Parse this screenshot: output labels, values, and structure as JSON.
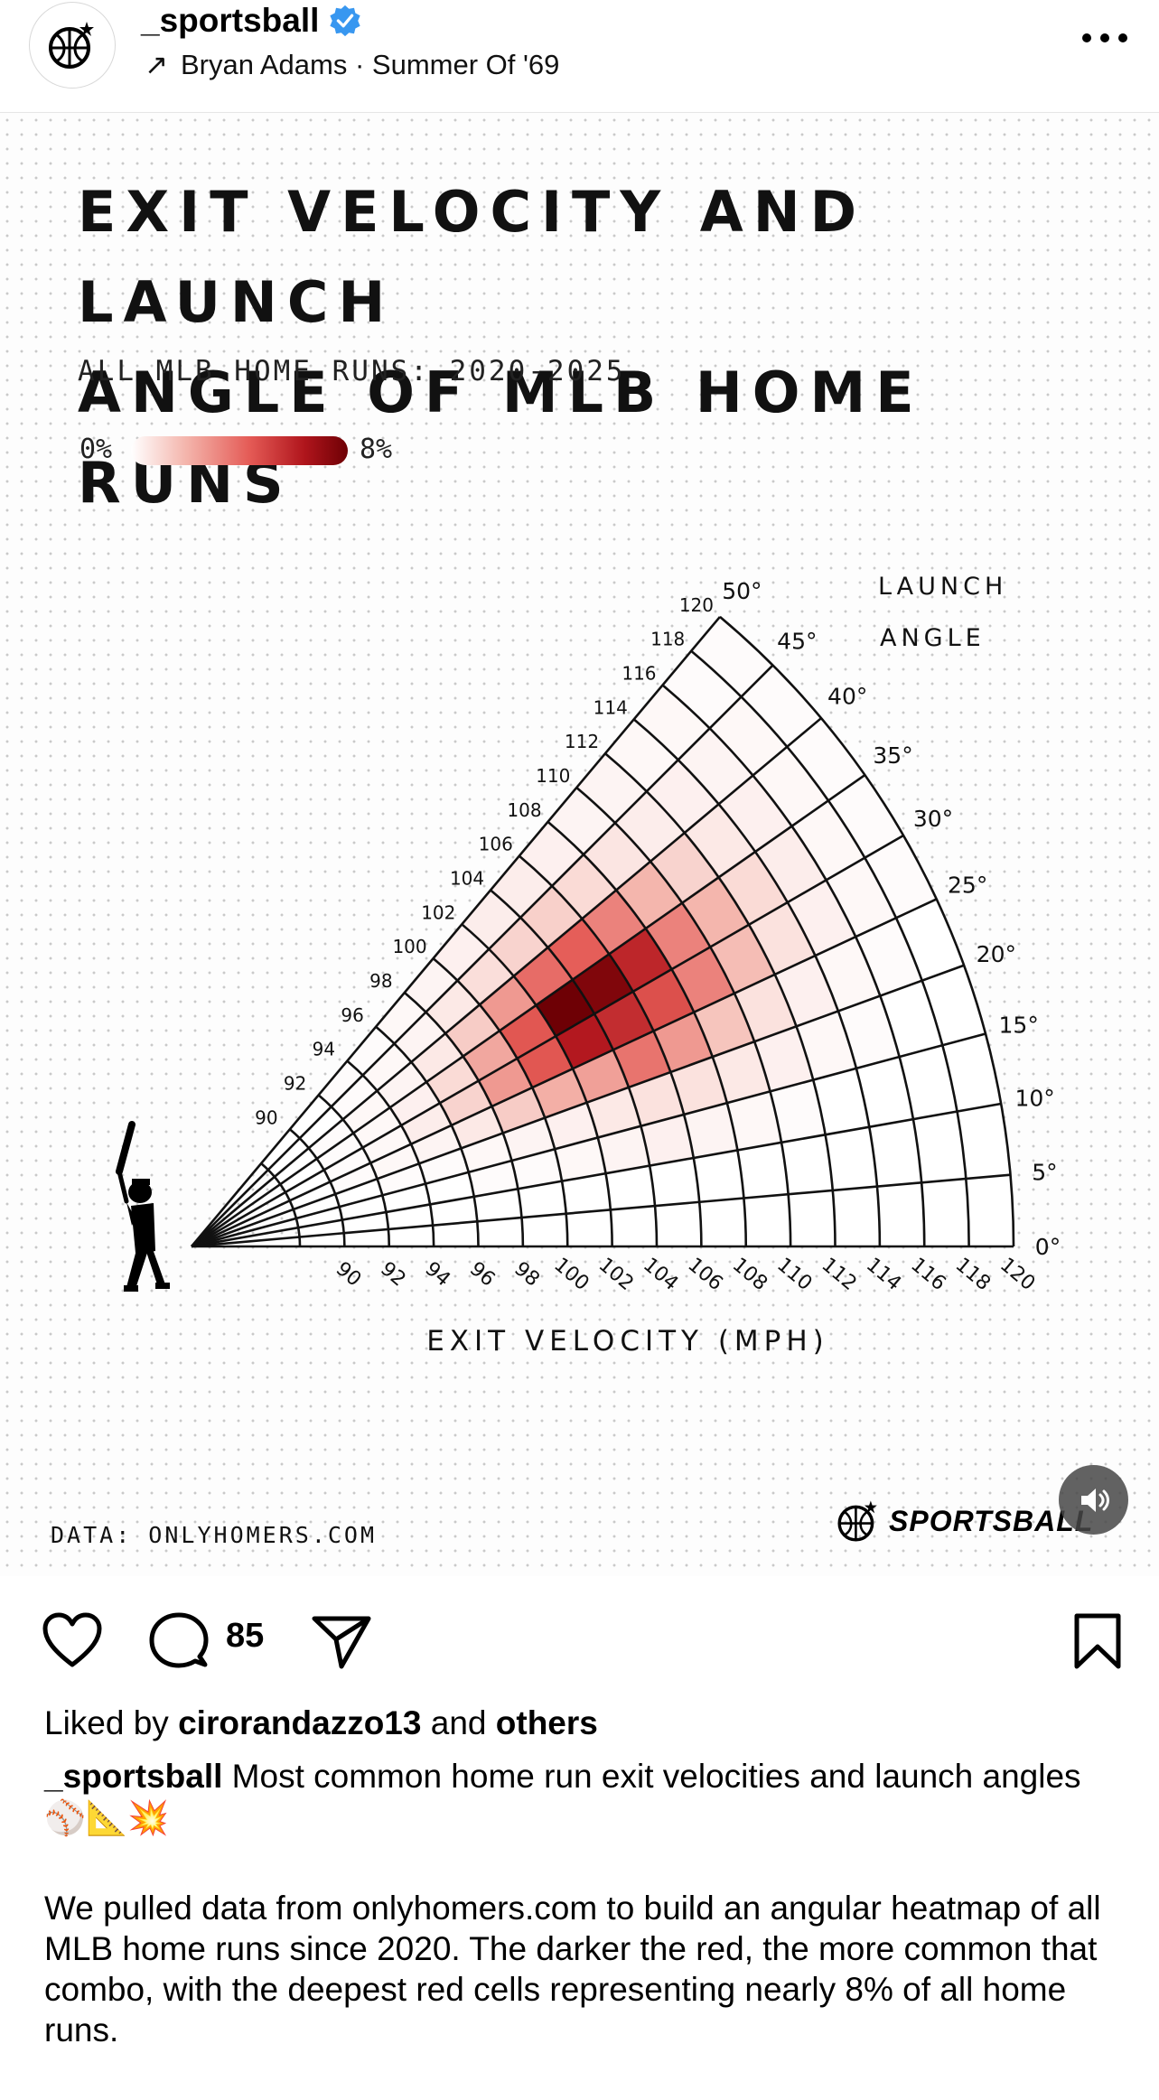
{
  "header": {
    "username": "_sportsball",
    "music_arrow": "↗",
    "music": "Bryan Adams · Summer Of '69",
    "more_icon": "more-horizontal-icon"
  },
  "post": {
    "title_line1": "EXIT VELOCITY AND LAUNCH",
    "title_line2": "ANGLE OF MLB HOME RUNS",
    "subtitle": "ALL MLB HOME RUNS: 2020-2025",
    "legend_min": "0%",
    "legend_max": "8%",
    "data_source": "DATA: ONLYHOMERS.COM",
    "brand": "SPORTSBALL"
  },
  "chart_data": {
    "type": "heatmap",
    "title": "EXIT VELOCITY AND LAUNCH ANGLE OF MLB HOME RUNS",
    "subtitle": "ALL MLB HOME RUNS: 2020-2025",
    "xlabel": "EXIT VELOCITY (MPH)",
    "angle_label": [
      "LAUNCH",
      "ANGLE"
    ],
    "velocity_ticks": [
      "90",
      "92",
      "94",
      "96",
      "98",
      "100",
      "102",
      "104",
      "106",
      "108",
      "110",
      "112",
      "114",
      "116",
      "118",
      "120"
    ],
    "angle_ticks": [
      "0°",
      "5°",
      "10°",
      "15°",
      "20°",
      "25°",
      "30°",
      "35°",
      "40°",
      "45°",
      "50°"
    ],
    "velocity_bins": [
      88,
      90,
      92,
      94,
      96,
      98,
      100,
      102,
      104,
      106,
      108,
      110,
      112,
      114,
      116,
      118,
      120
    ],
    "angle_bins": [
      0,
      5,
      10,
      15,
      20,
      25,
      30,
      35,
      40,
      45,
      50
    ],
    "color_scale": {
      "min": 0,
      "max": 8,
      "unit": "%",
      "colors": [
        "#ffffff",
        "#f4b6ad",
        "#e45a55",
        "#b0151c",
        "#6e0005"
      ]
    },
    "values_percent": [
      [
        0,
        0,
        0,
        0,
        0,
        0,
        0,
        0,
        0,
        0,
        0,
        0,
        0,
        0,
        0,
        0
      ],
      [
        0,
        0,
        0,
        0,
        0,
        0,
        0,
        0,
        0,
        0,
        0,
        0,
        0,
        0,
        0,
        0
      ],
      [
        0,
        0,
        0,
        0,
        0.1,
        0.1,
        0.2,
        0.3,
        0.4,
        0.3,
        0.2,
        0.1,
        0,
        0,
        0,
        0
      ],
      [
        0,
        0,
        0.1,
        0.1,
        0.2,
        0.3,
        0.4,
        0.6,
        0.8,
        0.8,
        0.6,
        0.4,
        0.2,
        0.1,
        0,
        0
      ],
      [
        0,
        0.1,
        0.2,
        0.3,
        0.6,
        1.4,
        2.2,
        2.6,
        3.8,
        2.8,
        1.6,
        0.8,
        0.4,
        0.2,
        0.1,
        0
      ],
      [
        0,
        0.1,
        0.2,
        0.5,
        1.2,
        2.8,
        4.6,
        6.4,
        5.8,
        4.8,
        3.4,
        1.8,
        0.8,
        0.4,
        0.2,
        0.1
      ],
      [
        0,
        0.1,
        0.2,
        0.4,
        1.0,
        2.4,
        4.6,
        8.0,
        7.6,
        6.0,
        3.4,
        2.0,
        1.0,
        0.5,
        0.2,
        0.1
      ],
      [
        0,
        0.1,
        0.2,
        0.3,
        0.6,
        1.4,
        2.8,
        4.0,
        4.4,
        3.4,
        2.0,
        1.2,
        0.6,
        0.4,
        0.2,
        0.1
      ],
      [
        0,
        0,
        0.1,
        0.2,
        0.3,
        0.6,
        0.9,
        1.2,
        1.3,
        1.0,
        0.7,
        0.5,
        0.4,
        0.3,
        0.2,
        0.1
      ],
      [
        0,
        0,
        0.1,
        0.1,
        0.2,
        0.3,
        0.4,
        0.5,
        0.5,
        0.4,
        0.3,
        0.3,
        0.2,
        0.2,
        0.1,
        0.1
      ]
    ]
  },
  "actions": {
    "like_icon": "heart-icon",
    "comment_icon": "comment-icon",
    "comment_count": "85",
    "share_icon": "send-icon",
    "save_icon": "bookmark-icon"
  },
  "caption": {
    "liked_prefix": "Liked by ",
    "liked_user": "cirorandazzo13",
    "liked_and": " and ",
    "liked_others": "others",
    "user": "_sportsball",
    "text": " Most common home run exit velocities and launch angles ⚾📐💥",
    "body": "We pulled data from onlyhomers.com to build an angular heatmap of all MLB home runs since 2020. The darker the red, the more common that combo, with the deepest red cells representing nearly 8% of all home runs."
  },
  "colors": {
    "verified": "#3897f0",
    "heat_dark": "#6e0005"
  }
}
